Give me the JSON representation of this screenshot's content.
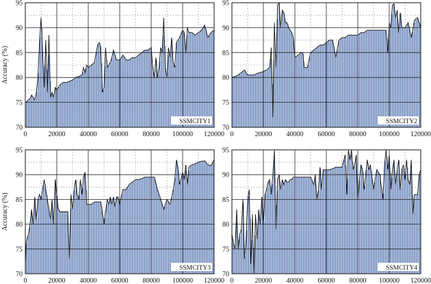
{
  "chart_data": [
    {
      "type": "area",
      "label": "SSMCITY1",
      "ylabel": "Accuracy (%)",
      "xlim": [
        0,
        120000
      ],
      "ylim": [
        70,
        95
      ],
      "xticks": [
        "0",
        "20000",
        "40000",
        "60000",
        "80000",
        "100000",
        "120000"
      ],
      "yticks": [
        "70",
        "75",
        "80",
        "85",
        "90",
        "95"
      ],
      "grid": true,
      "x": [
        0,
        1000,
        2000,
        3000,
        4000,
        5000,
        6000,
        7000,
        8000,
        9000,
        10000,
        11000,
        12000,
        13000,
        14000,
        15000,
        16000,
        17000,
        18000,
        19000,
        20000,
        22000,
        24000,
        26000,
        28000,
        30000,
        32000,
        34000,
        36000,
        37000,
        38000,
        39000,
        40000,
        42000,
        44000,
        45000,
        46000,
        47000,
        48000,
        49000,
        50000,
        51000,
        52000,
        54000,
        55000,
        56000,
        58000,
        60000,
        61000,
        62000,
        64000,
        66000,
        68000,
        70000,
        72000,
        74000,
        76000,
        78000,
        80000,
        81000,
        82000,
        83000,
        84000,
        85000,
        86000,
        87000,
        88000,
        89000,
        90000,
        91000,
        92000,
        93000,
        94000,
        95000,
        96000,
        98000,
        100000,
        101000,
        102000,
        103000,
        104000,
        106000,
        108000,
        110000,
        112000,
        114000,
        116000,
        118000,
        120000
      ],
      "y": [
        75,
        75.2,
        75.5,
        75.8,
        76.5,
        76,
        75.5,
        77,
        80,
        87,
        92,
        85,
        78,
        87.5,
        77,
        88.5,
        76,
        77,
        76,
        78,
        77.5,
        78.5,
        79,
        79,
        79.2,
        79.5,
        80,
        80.2,
        80.5,
        82,
        81,
        82.5,
        82,
        82.5,
        83,
        85,
        86.5,
        87,
        86,
        77,
        78,
        86,
        82,
        83,
        84,
        85.5,
        83.5,
        83.5,
        84,
        84.5,
        83.5,
        83.5,
        84,
        84,
        84.5,
        85,
        85.5,
        85.5,
        86,
        82,
        80,
        84,
        80,
        82,
        86,
        85,
        92,
        82,
        80,
        86,
        84,
        88,
        83,
        82,
        87,
        88,
        89.5,
        89,
        85,
        90,
        89,
        89,
        88.5,
        89,
        89.5,
        90.5,
        88,
        89,
        89.5
      ]
    },
    {
      "type": "area",
      "label": "SSMCITY2",
      "xlim": [
        0,
        120000
      ],
      "ylim": [
        70,
        95
      ],
      "xticks": [
        "0",
        "20000",
        "40000",
        "60000",
        "80000",
        "100000",
        "120000"
      ],
      "yticks": [
        "70",
        "75",
        "80",
        "85",
        "90",
        "95"
      ],
      "grid": true,
      "x": [
        0,
        2000,
        4000,
        6000,
        8000,
        10000,
        12000,
        14000,
        16000,
        18000,
        20000,
        22000,
        24000,
        25000,
        26000,
        27000,
        28000,
        29000,
        30000,
        31000,
        32000,
        33000,
        34000,
        35000,
        36000,
        37000,
        38000,
        39000,
        40000,
        42000,
        44000,
        45000,
        46000,
        48000,
        50000,
        52000,
        54000,
        56000,
        58000,
        60000,
        62000,
        64000,
        66000,
        68000,
        70000,
        72000,
        74000,
        76000,
        78000,
        80000,
        82000,
        84000,
        86000,
        88000,
        90000,
        92000,
        94000,
        96000,
        98000,
        99000,
        100000,
        101000,
        102000,
        103000,
        104000,
        105000,
        106000,
        107000,
        108000,
        110000,
        112000,
        114000,
        116000,
        118000,
        120000
      ],
      "y": [
        80,
        80.2,
        80.5,
        81,
        81.5,
        80.5,
        80.5,
        80.5,
        80.8,
        81,
        81.2,
        81.5,
        82,
        86,
        72,
        91,
        82,
        94.5,
        95,
        90,
        93.5,
        93,
        91,
        91,
        90,
        89.5,
        89,
        88,
        84,
        84.5,
        85,
        85,
        82,
        82,
        85,
        85.5,
        86,
        86.5,
        86.5,
        87,
        87.5,
        87.5,
        84,
        87.5,
        88,
        88,
        88.5,
        88.5,
        88.5,
        88.5,
        89,
        89,
        89.5,
        89.5,
        89.5,
        89.5,
        89.5,
        89.5,
        89.5,
        85,
        91,
        90,
        94.5,
        94.8,
        92,
        93.5,
        89,
        93,
        90,
        90,
        91,
        88,
        91.5,
        92,
        90
      ]
    },
    {
      "type": "area",
      "label": "SSMCITY3",
      "ylabel": "Accuracy (%)",
      "xlim": [
        0,
        120000
      ],
      "ylim": [
        70,
        95
      ],
      "xticks": [
        "0",
        "20000",
        "40000",
        "60000",
        "80000",
        "100000",
        "120000"
      ],
      "yticks": [
        "70",
        "75",
        "80",
        "85",
        "90",
        "95"
      ],
      "grid": true,
      "x": [
        0,
        500,
        1000,
        2000,
        3000,
        4000,
        5000,
        6000,
        7000,
        8000,
        9000,
        10000,
        11000,
        12000,
        13000,
        14000,
        15000,
        16000,
        17000,
        18000,
        19000,
        20000,
        21000,
        22000,
        24000,
        25000,
        26000,
        27000,
        28000,
        29000,
        30000,
        31000,
        32000,
        33000,
        34000,
        35000,
        36000,
        37000,
        38000,
        39000,
        40000,
        41000,
        42000,
        44000,
        46000,
        48000,
        50000,
        52000,
        53000,
        54000,
        55000,
        56000,
        57000,
        58000,
        59000,
        60000,
        61000,
        62000,
        64000,
        66000,
        68000,
        70000,
        72000,
        74000,
        76000,
        78000,
        80000,
        82000,
        84000,
        86000,
        88000,
        90000,
        92000,
        94000,
        95000,
        96000,
        97000,
        98000,
        100000,
        101000,
        102000,
        103000,
        104000,
        106000,
        108000,
        110000,
        112000,
        114000,
        116000,
        118000,
        120000
      ],
      "y": [
        72,
        76,
        77,
        78,
        80,
        83,
        80,
        85.5,
        81,
        85,
        86,
        85,
        87,
        89,
        87,
        85,
        83,
        81,
        85,
        80,
        89,
        86,
        83,
        82.5,
        82.5,
        82.5,
        82.5,
        82.5,
        73,
        86,
        83,
        87,
        89,
        86,
        85,
        89,
        86,
        89.5,
        90.5,
        84,
        84,
        84,
        84,
        84.5,
        84.5,
        84.5,
        80,
        85,
        84,
        85.5,
        84,
        85.5,
        83.5,
        85.5,
        85.5,
        84,
        85.5,
        87,
        87,
        88,
        88.5,
        89,
        89,
        89.2,
        89.5,
        89.5,
        89.5,
        89.5,
        87,
        85,
        83,
        85,
        84,
        87,
        89,
        93,
        91.5,
        88,
        90.5,
        89,
        92,
        88,
        91.5,
        92,
        92.2,
        92.5,
        92.7,
        92.8,
        92,
        91.8,
        93
      ]
    },
    {
      "type": "area",
      "label": "SSMCITY4",
      "xlim": [
        0,
        120000
      ],
      "ylim": [
        70,
        95
      ],
      "xticks": [
        "0",
        "20000",
        "40000",
        "60000",
        "80000",
        "100000",
        "120000"
      ],
      "yticks": [
        "70",
        "75",
        "80",
        "85",
        "90",
        "95"
      ],
      "grid": true,
      "x": [
        0,
        500,
        1000,
        2000,
        3000,
        4000,
        5000,
        6000,
        7000,
        8000,
        9000,
        10000,
        11000,
        12000,
        13000,
        14000,
        15000,
        16000,
        17000,
        18000,
        19000,
        20000,
        21000,
        22000,
        23000,
        24000,
        25000,
        26000,
        27000,
        28000,
        29000,
        30000,
        31000,
        32000,
        33000,
        34000,
        35000,
        36000,
        37000,
        38000,
        39000,
        40000,
        42000,
        44000,
        46000,
        48000,
        50000,
        52000,
        53000,
        54000,
        55000,
        56000,
        57000,
        58000,
        60000,
        62000,
        64000,
        66000,
        68000,
        70000,
        72000,
        73000,
        74000,
        75000,
        76000,
        77000,
        78000,
        79000,
        80000,
        81000,
        82000,
        83000,
        84000,
        85000,
        86000,
        87000,
        88000,
        90000,
        92000,
        94000,
        96000,
        97000,
        98000,
        99000,
        100000,
        101000,
        102000,
        103000,
        104000,
        105000,
        106000,
        107000,
        108000,
        109000,
        110000,
        111000,
        112000,
        113000,
        114000,
        115000,
        116000,
        118000,
        119000,
        120000
      ],
      "y": [
        78,
        77,
        76,
        75,
        83,
        75,
        78,
        79,
        85,
        73,
        77,
        85,
        87,
        72,
        82,
        70,
        82,
        77,
        83,
        80,
        85.5,
        80,
        86,
        87,
        88.5,
        89,
        86,
        90,
        95,
        79,
        89,
        90,
        87,
        89,
        88,
        89,
        88.5,
        88.5,
        89,
        89,
        89.5,
        89.5,
        89.5,
        89.5,
        89.5,
        89.5,
        89.5,
        88,
        90,
        85,
        87,
        91.5,
        87,
        91,
        91,
        91,
        91.2,
        91.5,
        91.5,
        91.5,
        94,
        86,
        95,
        93,
        95,
        91,
        92,
        94,
        85,
        89,
        92,
        91,
        87,
        90,
        93,
        91,
        92,
        87,
        91,
        90,
        85,
        92,
        95,
        91,
        94,
        87,
        91,
        93,
        88,
        91,
        93,
        87,
        91,
        92,
        89,
        93,
        89,
        88,
        93,
        82,
        86,
        86,
        90,
        91
      ]
    }
  ]
}
